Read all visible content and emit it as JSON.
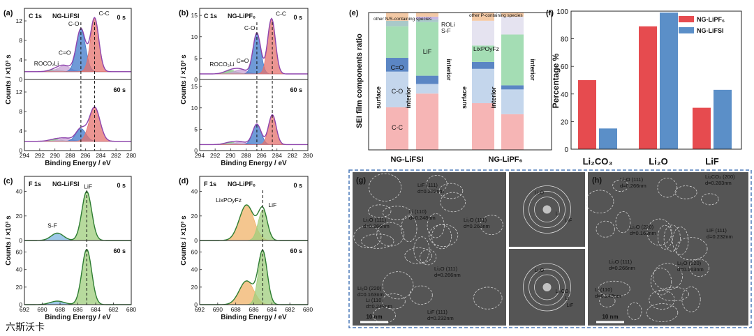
{
  "chart_data": [
    {
      "id": "a",
      "type": "line",
      "panel_label": "(a)",
      "element": "C 1s",
      "sample": "NG-LiFSI",
      "xlabel": "Binding Energy / eV",
      "ylabel": "Counts / ×10³ s",
      "xlim": [
        294,
        280
      ],
      "xticks": [
        "294",
        "292",
        "290",
        "288",
        "286",
        "284",
        "282",
        "280"
      ],
      "subplots": [
        {
          "time": "0 s",
          "ylim": [
            0,
            14
          ],
          "yticks": [
            "0",
            "4",
            "8",
            "12"
          ],
          "baseline": 1.6,
          "peaks": [
            {
              "label": "ROCO₂Li",
              "center": 290.0,
              "height": 0.4,
              "width": 0.8,
              "color": "#7fbf7f"
            },
            {
              "label": "C=O",
              "center": 288.8,
              "height": 1.2,
              "width": 0.8,
              "color": "#c9a2d6"
            },
            {
              "label": "C-O",
              "center": 286.6,
              "height": 8.8,
              "width": 0.6,
              "color": "#3f78c9"
            },
            {
              "label": "C-C",
              "center": 284.8,
              "height": 11.0,
              "width": 0.55,
              "color": "#e4726e"
            }
          ]
        },
        {
          "time": "60 s",
          "ylim": [
            0,
            14
          ],
          "yticks": [
            "0",
            "4",
            "8",
            "12"
          ],
          "baseline": 1.9,
          "peaks": [
            {
              "label": "ROCO₂Li",
              "center": 290.0,
              "height": 0.4,
              "width": 0.8,
              "color": "#7fbf7f"
            },
            {
              "label": "C=O",
              "center": 288.6,
              "height": 0.6,
              "width": 0.8,
              "color": "#c9a2d6"
            },
            {
              "label": "C-O",
              "center": 286.6,
              "height": 2.6,
              "width": 0.65,
              "color": "#3f78c9"
            },
            {
              "label": "C-C",
              "center": 284.8,
              "height": 7.0,
              "width": 0.7,
              "color": "#e4726e"
            }
          ]
        }
      ],
      "dashed_x": [
        286.6,
        284.8
      ]
    },
    {
      "id": "b",
      "type": "line",
      "panel_label": "(b)",
      "element": "C 1s",
      "sample": "NG-LiPF₆",
      "xlabel": "Binding Energy / eV",
      "ylabel": "Counts / ×10³ s",
      "xlim": [
        294,
        280
      ],
      "xticks": [
        "294",
        "292",
        "290",
        "288",
        "286",
        "284",
        "282",
        "280"
      ],
      "subplots": [
        {
          "time": "0 s",
          "ylim": [
            0,
            16
          ],
          "yticks": [
            "0",
            "5",
            "10",
            "15"
          ],
          "baseline": 1.3,
          "peaks": [
            {
              "label": "ROCO₂Li",
              "center": 290.0,
              "height": 0.8,
              "width": 0.8,
              "color": "#7fbf7f"
            },
            {
              "label": "C=O",
              "center": 288.7,
              "height": 1.0,
              "width": 0.8,
              "color": "#c9a2d6"
            },
            {
              "label": "C-O",
              "center": 286.6,
              "height": 9.6,
              "width": 0.5,
              "color": "#3f78c9"
            },
            {
              "label": "C-C",
              "center": 284.7,
              "height": 13.0,
              "width": 0.5,
              "color": "#e4726e"
            }
          ]
        },
        {
          "time": "60 s",
          "ylim": [
            0,
            16
          ],
          "yticks": [
            "0",
            "5",
            "10",
            "15"
          ],
          "baseline": 1.4,
          "peaks": [
            {
              "label": "ROCO₂Li",
              "center": 290.0,
              "height": 0.5,
              "width": 0.8,
              "color": "#7fbf7f"
            },
            {
              "label": "C=O",
              "center": 288.7,
              "height": 0.6,
              "width": 0.8,
              "color": "#c9a2d6"
            },
            {
              "label": "C-O",
              "center": 286.6,
              "height": 4.8,
              "width": 0.55,
              "color": "#3f78c9"
            },
            {
              "label": "C-C",
              "center": 284.6,
              "height": 7.0,
              "width": 0.5,
              "color": "#e4726e"
            }
          ]
        }
      ],
      "dashed_x": [
        286.6,
        284.6
      ]
    },
    {
      "id": "c",
      "type": "line",
      "panel_label": "(c)",
      "element": "F 1s",
      "sample": "NG-LiFSI",
      "xlabel": "Binding Energy / eV",
      "ylabel": "Counts / ×10³ s",
      "xlim": [
        692,
        680
      ],
      "xticks": [
        "692",
        "690",
        "688",
        "686",
        "684",
        "682",
        "680"
      ],
      "subplots": [
        {
          "time": "0 s",
          "ylim": [
            0,
            50
          ],
          "yticks": [
            "0",
            "20",
            "40"
          ],
          "baseline": 0,
          "peaks": [
            {
              "label": "S-F",
              "center": 688.3,
              "height": 6.0,
              "width": 0.7,
              "color": "#7cb6e0"
            },
            {
              "label": "LiF",
              "center": 685.0,
              "height": 40.0,
              "width": 0.55,
              "color": "#9fcd7c"
            }
          ]
        },
        {
          "time": "60 s",
          "ylim": [
            0,
            70
          ],
          "yticks": [
            "0",
            "20",
            "40",
            "60"
          ],
          "baseline": 0,
          "peaks": [
            {
              "label": "S-F",
              "center": 688.3,
              "height": 4.0,
              "width": 0.8,
              "color": "#7cb6e0"
            },
            {
              "label": "LiF",
              "center": 685.0,
              "height": 63.0,
              "width": 0.55,
              "color": "#9fcd7c"
            }
          ]
        }
      ],
      "dashed_x": [
        685.0
      ]
    },
    {
      "id": "d",
      "type": "line",
      "panel_label": "(d)",
      "element": "F 1s",
      "sample": "NG-LiPF₆",
      "xlabel": "Binding Energy / eV",
      "ylabel": "Counts / ×10³ s",
      "xlim": [
        692,
        680
      ],
      "xticks": [
        "692",
        "690",
        "688",
        "686",
        "684",
        "682",
        "680"
      ],
      "subplots": [
        {
          "time": "0 s",
          "ylim": [
            0,
            50
          ],
          "yticks": [
            "0",
            "20",
            "40"
          ],
          "baseline": 0,
          "peaks": [
            {
              "label": "LixPOyFz",
              "center": 686.8,
              "height": 29.0,
              "width": 0.8,
              "color": "#f0b36a"
            },
            {
              "label": "LiF",
              "center": 685.0,
              "height": 25.0,
              "width": 0.5,
              "color": "#9fcd7c"
            }
          ]
        },
        {
          "time": "60 s",
          "ylim": [
            0,
            70
          ],
          "yticks": [
            "0",
            "20",
            "40",
            "60"
          ],
          "baseline": 0,
          "peaks": [
            {
              "label": "LixPOyFz",
              "center": 686.8,
              "height": 27.0,
              "width": 0.8,
              "color": "#f0b36a"
            },
            {
              "label": "LiF",
              "center": 685.0,
              "height": 60.0,
              "width": 0.5,
              "color": "#9fcd7c"
            }
          ]
        }
      ],
      "dashed_x": [
        685.0
      ]
    },
    {
      "id": "e",
      "type": "bar",
      "panel_label": "(e)",
      "ylabel": "SEI film components ratio",
      "categories": [
        "NG-LiFSI",
        "NG-LiPF₆"
      ],
      "stacks": [
        {
          "label": "surface",
          "segments": [
            {
              "name": "C-C",
              "value": 0.31,
              "color": "#f6b5b5"
            },
            {
              "name": "C-O",
              "value": 0.26,
              "color": "#c4d6ec"
            },
            {
              "name": "C=O",
              "value": 0.1,
              "color": "#5b86c4"
            },
            {
              "name": "LiF",
              "value": 0.23,
              "color": "#a4ddb4"
            },
            {
              "name": "ROLi",
              "value": 0.04,
              "color": "#a9c9c9"
            },
            {
              "name": "other",
              "value": 0.06,
              "color": "#f3c9a5"
            }
          ]
        },
        {
          "label": "interior",
          "segments": [
            {
              "name": "C-C",
              "value": 0.41,
              "color": "#f6b5b5"
            },
            {
              "name": "C-O",
              "value": 0.07,
              "color": "#c4d6ec"
            },
            {
              "name": "C=O",
              "value": 0.06,
              "color": "#5b86c4"
            },
            {
              "name": "LiF",
              "value": 0.39,
              "color": "#a4ddb4"
            },
            {
              "name": "ROLi",
              "value": 0.02,
              "color": "#a9c9c9"
            },
            {
              "name": "S-F",
              "value": 0.02,
              "color": "#c8b6e2"
            },
            {
              "name": "other",
              "value": 0.03,
              "color": "#f3c9a5"
            }
          ]
        },
        {
          "label": "surface",
          "segments": [
            {
              "name": "C-C",
              "value": 0.34,
              "color": "#f6b5b5"
            },
            {
              "name": "C-O",
              "value": 0.25,
              "color": "#c4d6ec"
            },
            {
              "name": "C=O",
              "value": 0.05,
              "color": "#5b86c4"
            },
            {
              "name": "LiF",
              "value": 0.12,
              "color": "#a4ddb4"
            },
            {
              "name": "LixPOyFz",
              "value": 0.18,
              "color": "#e5e3f0"
            },
            {
              "name": "other",
              "value": 0.06,
              "color": "#f3c9a5"
            }
          ]
        },
        {
          "label": "interior",
          "segments": [
            {
              "name": "C-C",
              "value": 0.26,
              "color": "#f6b5b5"
            },
            {
              "name": "C-O",
              "value": 0.18,
              "color": "#c4d6ec"
            },
            {
              "name": "C=O",
              "value": 0.03,
              "color": "#5b86c4"
            },
            {
              "name": "LiF",
              "value": 0.37,
              "color": "#a4ddb4"
            },
            {
              "name": "LixPOyFz",
              "value": 0.13,
              "color": "#e5e3f0"
            },
            {
              "name": "other",
              "value": 0.03,
              "color": "#f3c9a5"
            }
          ]
        }
      ],
      "labels": {
        "other_ns": "other N/S-containing species",
        "other_p": "other P-containing species",
        "roli": "ROLi",
        "sf": "S-F",
        "lif": "LiF",
        "cc": "C-C",
        "co": "C-O",
        "c_eq_o": "C=O"
      }
    },
    {
      "id": "f",
      "type": "bar",
      "panel_label": "(f)",
      "ylabel": "Percentage %",
      "ylim": [
        0,
        100
      ],
      "yticks": [
        "0",
        "20",
        "40",
        "60",
        "80",
        "100"
      ],
      "categories": [
        "Li₂CO₃",
        "Li₂O",
        "LiF"
      ],
      "series": [
        {
          "name": "NG-LiPF₆",
          "values": [
            50,
            89,
            30
          ],
          "color": "#e64b4f"
        },
        {
          "name": "NG-LiFSI",
          "values": [
            15,
            99,
            43
          ],
          "color": "#5b8fc8"
        }
      ],
      "legend": "top-right"
    }
  ],
  "tem": {
    "g": {
      "panel_label": "(g)",
      "scale": "10 nm",
      "annotations": [
        {
          "text": "LiF (111)",
          "color": "#e08a3a"
        },
        {
          "text": "d=0.232nm",
          "color": "#e08a3a"
        },
        {
          "text": "Li (110)",
          "color": "#7fd06a"
        },
        {
          "text": "d=0.248nm",
          "color": "#7fd06a"
        },
        {
          "text": "Li₂O (111)",
          "color": "#ffffff"
        },
        {
          "text": "d=0.266nm",
          "color": "#ffffff"
        },
        {
          "text": "Li₂O (111)",
          "color": "#ffffff"
        },
        {
          "text": "d=0.266nm",
          "color": "#ffffff"
        },
        {
          "text": "Li₂O (111)",
          "color": "#ffffff"
        },
        {
          "text": "d=0.266nm",
          "color": "#ffffff"
        },
        {
          "text": "Li₂O (220)",
          "color": "#ffffff"
        },
        {
          "text": "d=0.163nm",
          "color": "#ffffff"
        },
        {
          "text": "Li (110)",
          "color": "#7fd06a"
        },
        {
          "text": "d=0.248nm",
          "color": "#7fd06a"
        },
        {
          "text": "LiF (111)",
          "color": "#e08a3a"
        },
        {
          "text": "d=0.232nm",
          "color": "#e08a3a"
        }
      ],
      "fft_top": [
        {
          "text": "Li₂O",
          "color": "#ffffff"
        },
        {
          "text": "Li",
          "color": "#7fd06a"
        },
        {
          "text": "LiF",
          "color": "#e08a3a"
        }
      ],
      "fft_bottom": [
        {
          "text": "Li₂O",
          "color": "#ffffff"
        },
        {
          "text": "Li₂CO₃",
          "color": "#e0a020"
        },
        {
          "text": "Li",
          "color": "#7fd06a"
        },
        {
          "text": "LiF",
          "color": "#e08a3a"
        }
      ]
    },
    "h": {
      "panel_label": "(h)",
      "scale": "10 nm",
      "annotations": [
        {
          "text": "Li₂O (111)",
          "color": "#ffffff"
        },
        {
          "text": "d=0.266nm",
          "color": "#ffffff"
        },
        {
          "text": "Li₂CO₃ (200)",
          "color": "#e0a020"
        },
        {
          "text": "d=0.283nm",
          "color": "#e0a020"
        },
        {
          "text": "Li₂O (220)",
          "color": "#ffffff"
        },
        {
          "text": "d=0.163nm",
          "color": "#ffffff"
        },
        {
          "text": "LiF (111)",
          "color": "#e08a3a"
        },
        {
          "text": "d=0.232nm",
          "color": "#e08a3a"
        },
        {
          "text": "Li₂O (111)",
          "color": "#ffffff"
        },
        {
          "text": "d=0.266nm",
          "color": "#ffffff"
        },
        {
          "text": "Li₂O (220)",
          "color": "#ffffff"
        },
        {
          "text": "d=0.163nm",
          "color": "#ffffff"
        },
        {
          "text": "Li (110)",
          "color": "#7fd06a"
        },
        {
          "text": "d=0.248nm",
          "color": "#7fd06a"
        }
      ]
    }
  },
  "watermark": "六斯沃卡"
}
